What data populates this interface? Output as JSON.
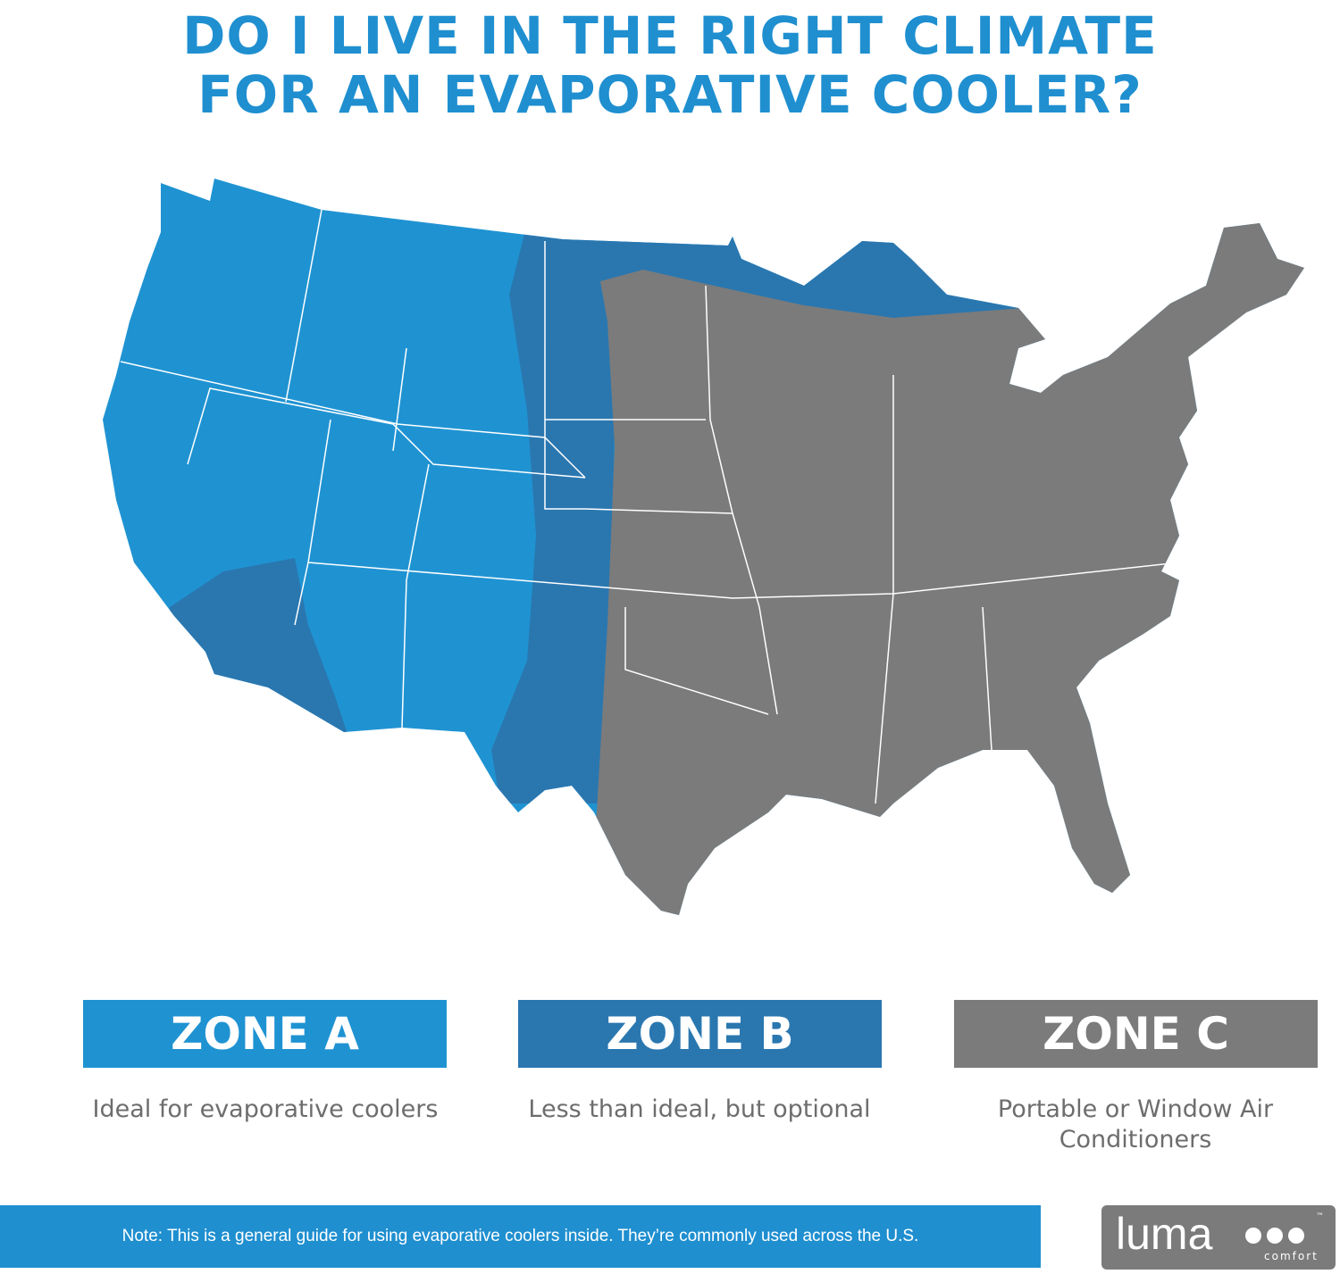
{
  "header": {
    "title_lines": [
      "DO I LIVE IN THE RIGHT CLIMATE",
      "FOR AN EVAPORATIVE COOLER?"
    ]
  },
  "zones": [
    {
      "label": "ZONE A",
      "description": "Ideal for evaporative coolers"
    },
    {
      "label": "ZONE B",
      "description": "Less than ideal, but optional"
    },
    {
      "label": "ZONE C",
      "description": "Portable or Window Air Conditioners"
    }
  ],
  "note": "Note: This is a general guide for using evaporative coolers inside. They’re commonly used across the U.S.",
  "logo": {
    "name": "luma",
    "tagline": "comfort",
    "mark": "™"
  }
}
